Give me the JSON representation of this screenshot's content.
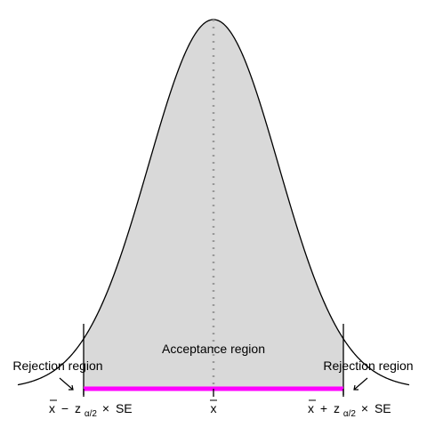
{
  "distribution": "normal",
  "shaded_region": "between critical values",
  "labels": {
    "acceptance": "Acceptance region",
    "rejection_left": "Rejection region",
    "rejection_right": "Rejection region"
  },
  "ticks": {
    "lower": {
      "xbar": "x",
      "minus": "−",
      "z": "z",
      "sub": "α/2",
      "times": "×",
      "se": "SE"
    },
    "center": {
      "xbar": "x"
    },
    "upper": {
      "xbar": "x",
      "plus": "+",
      "z": "z",
      "sub": "α/2",
      "times": "×",
      "se": "SE"
    }
  },
  "colors": {
    "curve": "#000000",
    "shade": "#d9d9d9",
    "interval_bar": "#ff00ff",
    "mean_line": "#999999"
  }
}
